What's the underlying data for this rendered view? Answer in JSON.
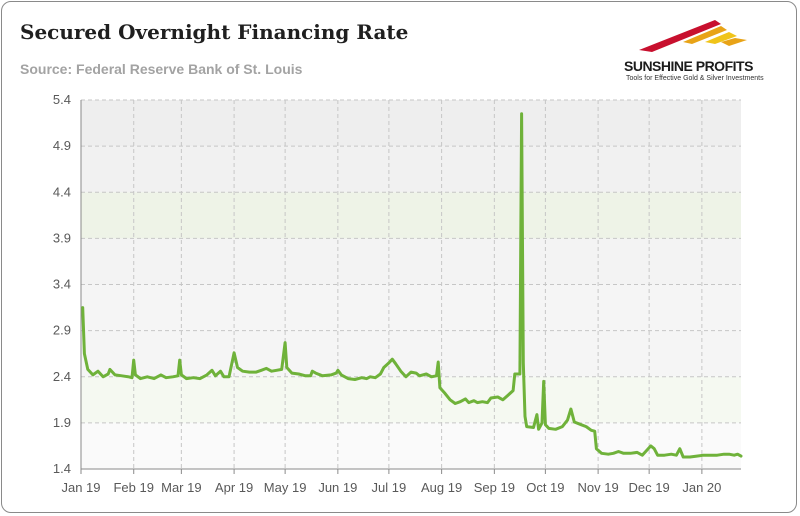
{
  "header": {
    "title": "Secured Overnight Financing Rate",
    "subtitle": "Source: Federal Reserve Bank of St. Louis"
  },
  "brand": {
    "name": "SUNSHINE PROFITS",
    "tagline": "Tools for Effective Gold & Silver Investments",
    "logo_icon": "sunshine-rays-logo",
    "colors": [
      "#c8102e",
      "#e8a317",
      "#f0c419"
    ]
  },
  "chart_data": {
    "type": "line",
    "title": "Secured Overnight Financing Rate",
    "subtitle": "Source: Federal Reserve Bank of St. Louis",
    "xlabel": "",
    "ylabel": "",
    "ylim": [
      1.4,
      5.4
    ],
    "y_ticks": [
      "1.4",
      "1.9",
      "2.4",
      "2.9",
      "3.4",
      "3.9",
      "4.4",
      "4.9",
      "5.4"
    ],
    "x_ticks": [
      "Jan 19",
      "Feb 19",
      "Mar 19",
      "Apr 19",
      "May 19",
      "Jun 19",
      "Jul 19",
      "Aug 19",
      "Sep 19",
      "Oct 19",
      "Nov 19",
      "Dec 19",
      "Jan 20"
    ],
    "x_range": [
      "2019-01-01",
      "2020-01-24"
    ],
    "grid": true,
    "line_color": "#6fb23a",
    "series": [
      {
        "points": [
          [
            "2019-01-02",
            3.15
          ],
          [
            "2019-01-03",
            2.65
          ],
          [
            "2019-01-05",
            2.48
          ],
          [
            "2019-01-08",
            2.42
          ],
          [
            "2019-01-11",
            2.46
          ],
          [
            "2019-01-14",
            2.4
          ],
          [
            "2019-01-17",
            2.43
          ],
          [
            "2019-01-18",
            2.48
          ],
          [
            "2019-01-21",
            2.42
          ],
          [
            "2019-01-25",
            2.41
          ],
          [
            "2019-01-29",
            2.4
          ],
          [
            "2019-01-31",
            2.39
          ],
          [
            "2019-02-01",
            2.58
          ],
          [
            "2019-02-02",
            2.42
          ],
          [
            "2019-02-05",
            2.38
          ],
          [
            "2019-02-09",
            2.4
          ],
          [
            "2019-02-13",
            2.38
          ],
          [
            "2019-02-17",
            2.42
          ],
          [
            "2019-02-20",
            2.39
          ],
          [
            "2019-02-24",
            2.4
          ],
          [
            "2019-02-27",
            2.41
          ],
          [
            "2019-02-28",
            2.58
          ],
          [
            "2019-03-01",
            2.42
          ],
          [
            "2019-03-04",
            2.38
          ],
          [
            "2019-03-08",
            2.39
          ],
          [
            "2019-03-12",
            2.38
          ],
          [
            "2019-03-16",
            2.42
          ],
          [
            "2019-03-19",
            2.47
          ],
          [
            "2019-03-21",
            2.41
          ],
          [
            "2019-03-24",
            2.46
          ],
          [
            "2019-03-26",
            2.4
          ],
          [
            "2019-03-29",
            2.4
          ],
          [
            "2019-04-01",
            2.66
          ],
          [
            "2019-04-03",
            2.5
          ],
          [
            "2019-04-06",
            2.46
          ],
          [
            "2019-04-10",
            2.45
          ],
          [
            "2019-04-14",
            2.45
          ],
          [
            "2019-04-17",
            2.47
          ],
          [
            "2019-04-20",
            2.49
          ],
          [
            "2019-04-23",
            2.46
          ],
          [
            "2019-04-26",
            2.47
          ],
          [
            "2019-04-29",
            2.48
          ],
          [
            "2019-05-01",
            2.77
          ],
          [
            "2019-05-02",
            2.5
          ],
          [
            "2019-05-05",
            2.44
          ],
          [
            "2019-05-09",
            2.43
          ],
          [
            "2019-05-13",
            2.41
          ],
          [
            "2019-05-16",
            2.41
          ],
          [
            "2019-05-17",
            2.46
          ],
          [
            "2019-05-19",
            2.44
          ],
          [
            "2019-05-23",
            2.41
          ],
          [
            "2019-05-28",
            2.42
          ],
          [
            "2019-05-31",
            2.44
          ],
          [
            "2019-06-01",
            2.47
          ],
          [
            "2019-06-03",
            2.42
          ],
          [
            "2019-06-07",
            2.38
          ],
          [
            "2019-06-11",
            2.37
          ],
          [
            "2019-06-15",
            2.39
          ],
          [
            "2019-06-18",
            2.38
          ],
          [
            "2019-06-20",
            2.4
          ],
          [
            "2019-06-23",
            2.39
          ],
          [
            "2019-06-26",
            2.43
          ],
          [
            "2019-06-28",
            2.5
          ],
          [
            "2019-07-01",
            2.55
          ],
          [
            "2019-07-03",
            2.59
          ],
          [
            "2019-07-05",
            2.54
          ],
          [
            "2019-07-08",
            2.46
          ],
          [
            "2019-07-11",
            2.4
          ],
          [
            "2019-07-14",
            2.45
          ],
          [
            "2019-07-17",
            2.44
          ],
          [
            "2019-07-19",
            2.41
          ],
          [
            "2019-07-23",
            2.43
          ],
          [
            "2019-07-26",
            2.4
          ],
          [
            "2019-07-29",
            2.41
          ],
          [
            "2019-07-30",
            2.56
          ],
          [
            "2019-07-31",
            2.28
          ],
          [
            "2019-08-03",
            2.22
          ],
          [
            "2019-08-06",
            2.15
          ],
          [
            "2019-08-09",
            2.11
          ],
          [
            "2019-08-12",
            2.13
          ],
          [
            "2019-08-15",
            2.16
          ],
          [
            "2019-08-17",
            2.12
          ],
          [
            "2019-08-20",
            2.14
          ],
          [
            "2019-08-22",
            2.12
          ],
          [
            "2019-08-25",
            2.13
          ],
          [
            "2019-08-28",
            2.12
          ],
          [
            "2019-08-30",
            2.17
          ],
          [
            "2019-09-03",
            2.18
          ],
          [
            "2019-09-06",
            2.15
          ],
          [
            "2019-09-09",
            2.2
          ],
          [
            "2019-09-12",
            2.25
          ],
          [
            "2019-09-13",
            2.43
          ],
          [
            "2019-09-16",
            2.43
          ],
          [
            "2019-09-17",
            5.25
          ],
          [
            "2019-09-18",
            2.55
          ],
          [
            "2019-09-19",
            1.97
          ],
          [
            "2019-09-20",
            1.86
          ],
          [
            "2019-09-24",
            1.85
          ],
          [
            "2019-09-26",
            1.99
          ],
          [
            "2019-09-27",
            1.83
          ],
          [
            "2019-09-29",
            1.9
          ],
          [
            "2019-09-30",
            2.35
          ],
          [
            "2019-10-01",
            1.88
          ],
          [
            "2019-10-03",
            1.84
          ],
          [
            "2019-10-07",
            1.83
          ],
          [
            "2019-10-11",
            1.86
          ],
          [
            "2019-10-14",
            1.93
          ],
          [
            "2019-10-16",
            2.05
          ],
          [
            "2019-10-18",
            1.91
          ],
          [
            "2019-10-22",
            1.88
          ],
          [
            "2019-10-25",
            1.86
          ],
          [
            "2019-10-28",
            1.82
          ],
          [
            "2019-10-30",
            1.81
          ],
          [
            "2019-10-31",
            1.62
          ],
          [
            "2019-11-03",
            1.57
          ],
          [
            "2019-11-07",
            1.56
          ],
          [
            "2019-11-10",
            1.57
          ],
          [
            "2019-11-13",
            1.59
          ],
          [
            "2019-11-16",
            1.57
          ],
          [
            "2019-11-20",
            1.57
          ],
          [
            "2019-11-24",
            1.58
          ],
          [
            "2019-11-27",
            1.55
          ],
          [
            "2019-11-29",
            1.59
          ],
          [
            "2019-12-02",
            1.65
          ],
          [
            "2019-12-04",
            1.62
          ],
          [
            "2019-12-06",
            1.55
          ],
          [
            "2019-12-10",
            1.55
          ],
          [
            "2019-12-14",
            1.56
          ],
          [
            "2019-12-17",
            1.55
          ],
          [
            "2019-12-19",
            1.62
          ],
          [
            "2019-12-21",
            1.53
          ],
          [
            "2019-12-25",
            1.53
          ],
          [
            "2019-12-29",
            1.54
          ],
          [
            "2020-01-02",
            1.55
          ],
          [
            "2020-01-06",
            1.55
          ],
          [
            "2020-01-10",
            1.55
          ],
          [
            "2020-01-14",
            1.56
          ],
          [
            "2020-01-17",
            1.56
          ],
          [
            "2020-01-20",
            1.55
          ],
          [
            "2020-01-22",
            1.56
          ],
          [
            "2020-01-24",
            1.54
          ]
        ]
      }
    ]
  }
}
